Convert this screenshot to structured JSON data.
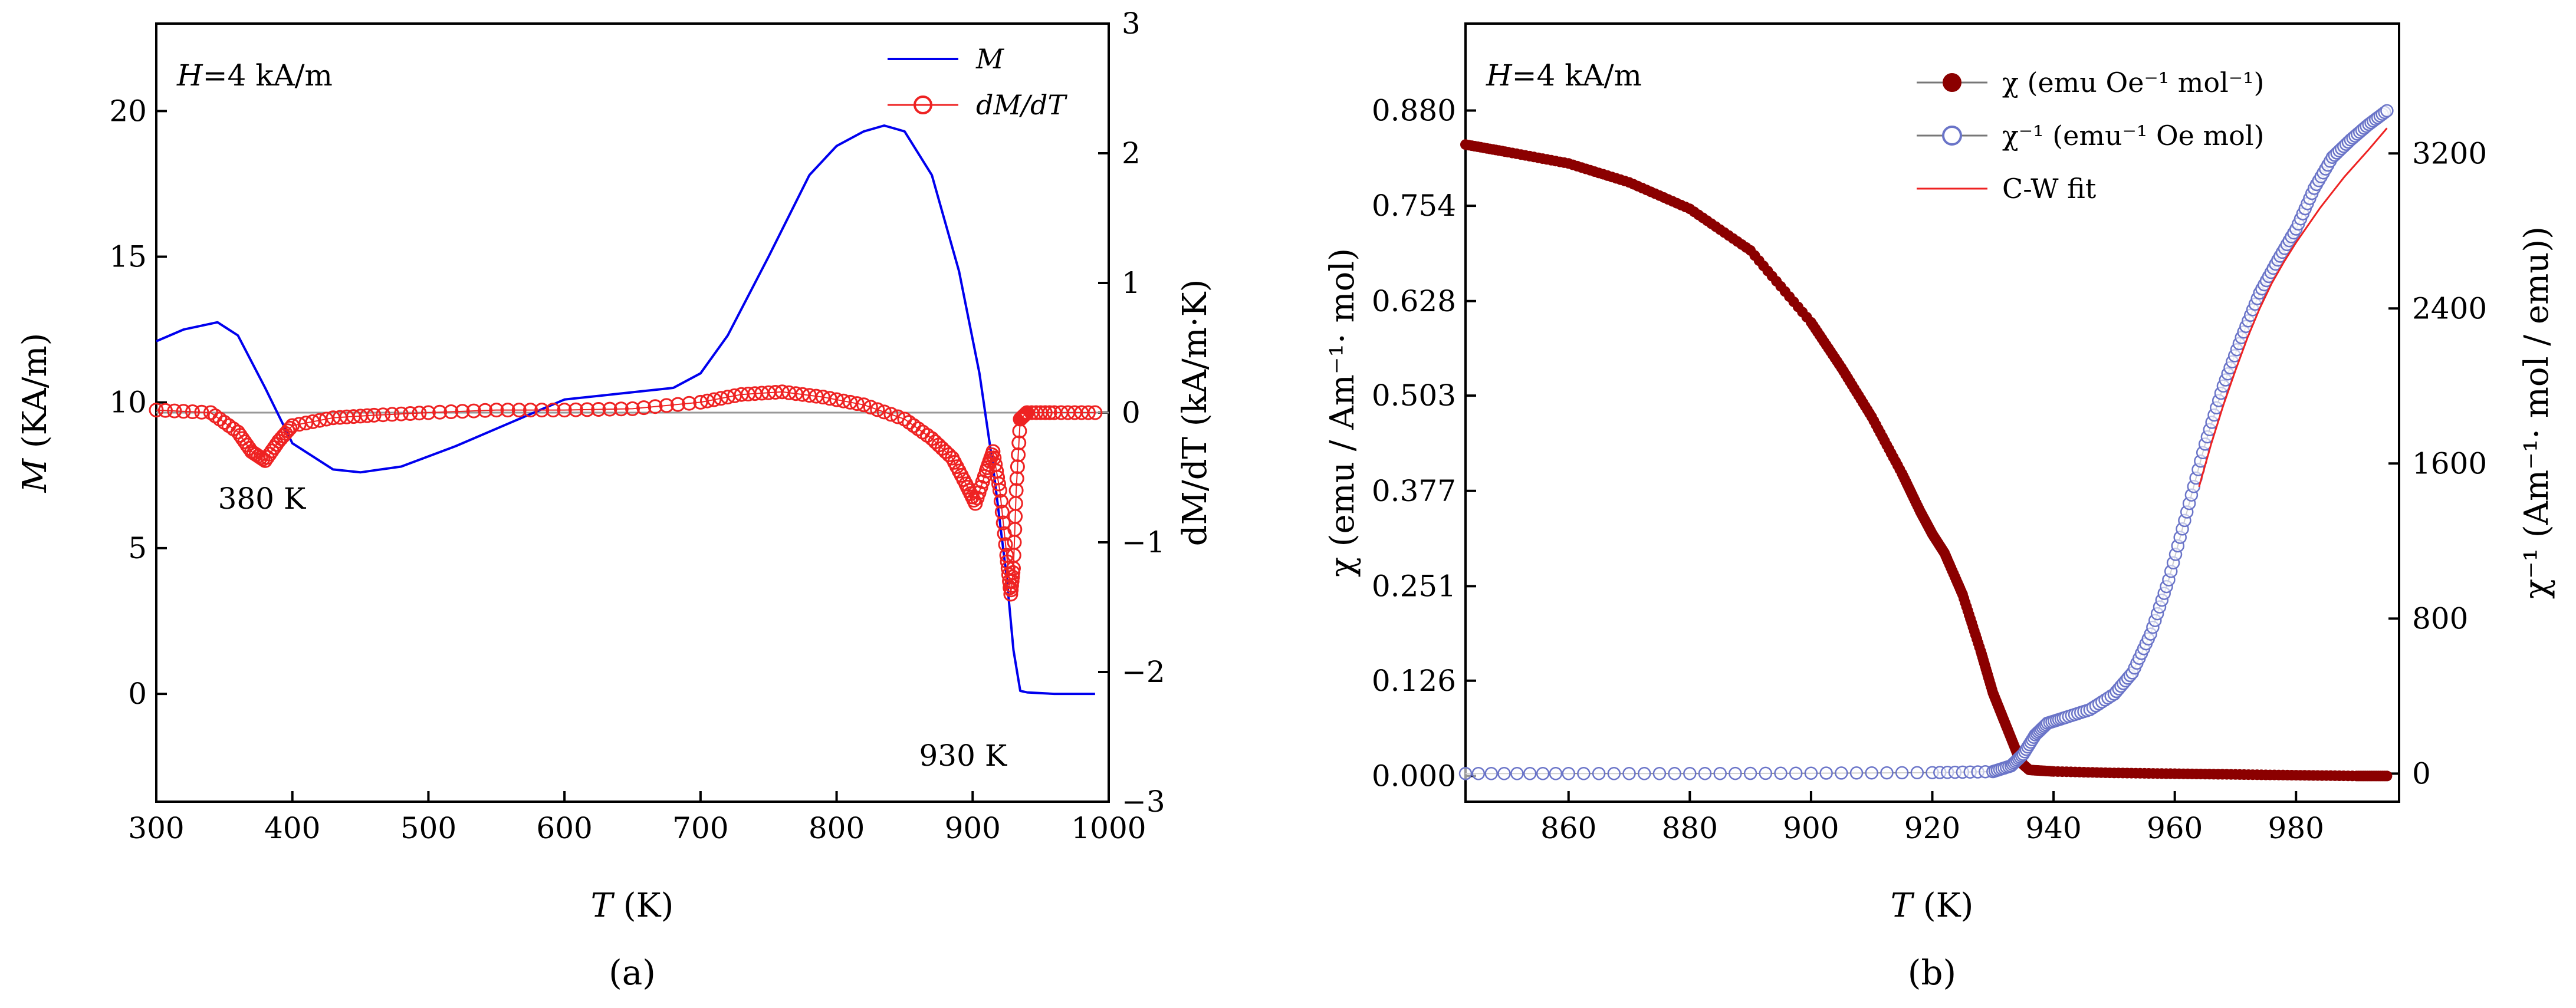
{
  "chart_data": [
    {
      "type": "line",
      "panel_label": "(a)",
      "annotation_field": "H=4 kA/m",
      "annotation_field_parts": {
        "symbol": "H",
        "value": "=4 kA/m"
      },
      "xlabel": {
        "symbol": "T",
        "unit": " (K)"
      },
      "ylabel_left": {
        "symbol": "M",
        "unit": " (KA/m)"
      },
      "ylabel_right": "dM/dT (kA/m·K)",
      "xlim": [
        300,
        1000
      ],
      "ylim_left": [
        -3.7,
        23
      ],
      "ylim_right": [
        -3,
        3
      ],
      "xticks": [
        300,
        400,
        500,
        600,
        700,
        800,
        900,
        1000
      ],
      "xtick_labels": [
        "300",
        "400",
        "500",
        "600",
        "700",
        "800",
        "900",
        "1000"
      ],
      "yticks_left": [
        0,
        5,
        10,
        15,
        20
      ],
      "ytick_labels_left": [
        "0",
        "5",
        "10",
        "15",
        "20"
      ],
      "yticks_right": [
        -3,
        -2,
        -1,
        0,
        1,
        2,
        3
      ],
      "ytick_labels_right": [
        "−3",
        "−2",
        "−1",
        "0",
        "1",
        "2",
        "3"
      ],
      "zero_line_right": 0,
      "annotations": [
        {
          "text": "380 K",
          "x": 380,
          "y": -0.65,
          "axis": "right"
        },
        {
          "text": "930 K",
          "x": 930,
          "y": -2.45,
          "axis": "right"
        }
      ],
      "legend": [
        {
          "label": "M",
          "color": "#0000ee",
          "marker": "line"
        },
        {
          "label": "dM/dT",
          "color": "#ee2222",
          "marker": "open-circle"
        }
      ],
      "series": [
        {
          "name": "M",
          "axis": "left",
          "color": "#0000ee",
          "x": [
            300,
            320,
            345,
            360,
            380,
            400,
            430,
            450,
            480,
            520,
            560,
            600,
            640,
            680,
            700,
            720,
            750,
            780,
            800,
            820,
            835,
            850,
            870,
            890,
            905,
            915,
            925,
            930,
            935,
            940,
            960,
            990
          ],
          "y": [
            12.1,
            12.5,
            12.75,
            12.3,
            10.5,
            8.6,
            7.7,
            7.6,
            7.8,
            8.5,
            9.3,
            10.1,
            10.3,
            10.5,
            11.0,
            12.3,
            15.0,
            17.8,
            18.8,
            19.3,
            19.5,
            19.3,
            17.8,
            14.5,
            11.0,
            7.8,
            4.0,
            1.5,
            0.1,
            0.05,
            0.0,
            0.0
          ]
        },
        {
          "name": "dM/dT",
          "axis": "right",
          "color": "#ee2222",
          "x": [
            300,
            340,
            360,
            370,
            380,
            390,
            400,
            430,
            460,
            500,
            550,
            600,
            650,
            700,
            730,
            760,
            790,
            820,
            850,
            870,
            885,
            895,
            902,
            910,
            915,
            920,
            925,
            928,
            930,
            932,
            935,
            940,
            960,
            990
          ],
          "y": [
            0.02,
            0.0,
            -0.15,
            -0.3,
            -0.37,
            -0.22,
            -0.1,
            -0.04,
            -0.02,
            0.0,
            0.02,
            0.02,
            0.03,
            0.08,
            0.14,
            0.16,
            0.12,
            0.06,
            -0.05,
            -0.2,
            -0.35,
            -0.55,
            -0.7,
            -0.45,
            -0.3,
            -0.6,
            -1.1,
            -1.4,
            -1.2,
            -0.6,
            -0.05,
            0.0,
            0.0,
            0.0
          ]
        }
      ]
    },
    {
      "type": "scatter",
      "panel_label": "(b)",
      "annotation_field": "H=4 kA/m",
      "annotation_field_parts": {
        "symbol": "H",
        "value": "=4 kA/m"
      },
      "xlabel": {
        "symbol": "T",
        "unit": " (K)"
      },
      "ylabel_left": "χ (emu / Am⁻¹· mol)",
      "ylabel_right": "χ⁻¹ (Am⁻¹· mol / emu))",
      "xlim": [
        843,
        997
      ],
      "ylim_left": [
        -0.034,
        0.995
      ],
      "ylim_right": [
        -145,
        3870
      ],
      "xticks": [
        860,
        880,
        900,
        920,
        940,
        960,
        980
      ],
      "xtick_labels": [
        "860",
        "880",
        "900",
        "920",
        "940",
        "960",
        "980"
      ],
      "yticks_left": [
        0.0,
        0.126,
        0.251,
        0.377,
        0.503,
        0.628,
        0.754,
        0.88
      ],
      "ytick_labels_left": [
        "0.000",
        "0.126",
        "0.251",
        "0.377",
        "0.503",
        "0.628",
        "0.754",
        "0.880"
      ],
      "yticks_right": [
        0,
        800,
        1600,
        2400,
        3200
      ],
      "ytick_labels_right": [
        "0",
        "800",
        "1600",
        "2400",
        "3200"
      ],
      "legend": [
        {
          "label": "χ (emu Oe⁻¹ mol⁻¹)",
          "color": "#8b0000",
          "marker": "filled-circle"
        },
        {
          "label": "χ⁻¹ (emu⁻¹ Oe mol)",
          "color": "#6a74c8",
          "marker": "open-circle"
        },
        {
          "label": "C-W fit",
          "color": "#ee2222",
          "marker": "line"
        }
      ],
      "series": [
        {
          "name": "χ",
          "axis": "left",
          "color": "#8b0000",
          "x": [
            843,
            850,
            860,
            870,
            880,
            890,
            900,
            905,
            910,
            915,
            918,
            920,
            922,
            925,
            928,
            930,
            932,
            934,
            935,
            936,
            940,
            950,
            960,
            970,
            980,
            990,
            995
          ],
          "y": [
            0.835,
            0.825,
            0.81,
            0.785,
            0.75,
            0.695,
            0.6,
            0.54,
            0.475,
            0.4,
            0.35,
            0.32,
            0.295,
            0.24,
            0.165,
            0.11,
            0.07,
            0.03,
            0.015,
            0.008,
            0.006,
            0.004,
            0.003,
            0.002,
            0.001,
            0.0,
            0.0
          ]
        },
        {
          "name": "χ⁻¹",
          "axis": "right",
          "color": "#6a74c8",
          "x": [
            843,
            860,
            880,
            900,
            920,
            930,
            933,
            935,
            937,
            939,
            942,
            946,
            950,
            953,
            956,
            959,
            962,
            965,
            968,
            971,
            974,
            977,
            980,
            983,
            986,
            989,
            992,
            995
          ],
          "y": [
            0,
            0,
            0,
            2,
            5,
            10,
            40,
            100,
            200,
            260,
            290,
            330,
            410,
            520,
            720,
            1000,
            1350,
            1700,
            2000,
            2250,
            2480,
            2650,
            2810,
            3020,
            3180,
            3270,
            3350,
            3420
          ]
        },
        {
          "name": "C-W fit",
          "axis": "right",
          "color": "#ee2222",
          "x": [
            964,
            966,
            968,
            970,
            972,
            974,
            976,
            978,
            980,
            982,
            984,
            986,
            988,
            990,
            992,
            995
          ],
          "y": [
            1480,
            1700,
            1900,
            2080,
            2250,
            2400,
            2530,
            2640,
            2740,
            2830,
            2920,
            3000,
            3080,
            3150,
            3220,
            3330
          ]
        }
      ]
    }
  ]
}
